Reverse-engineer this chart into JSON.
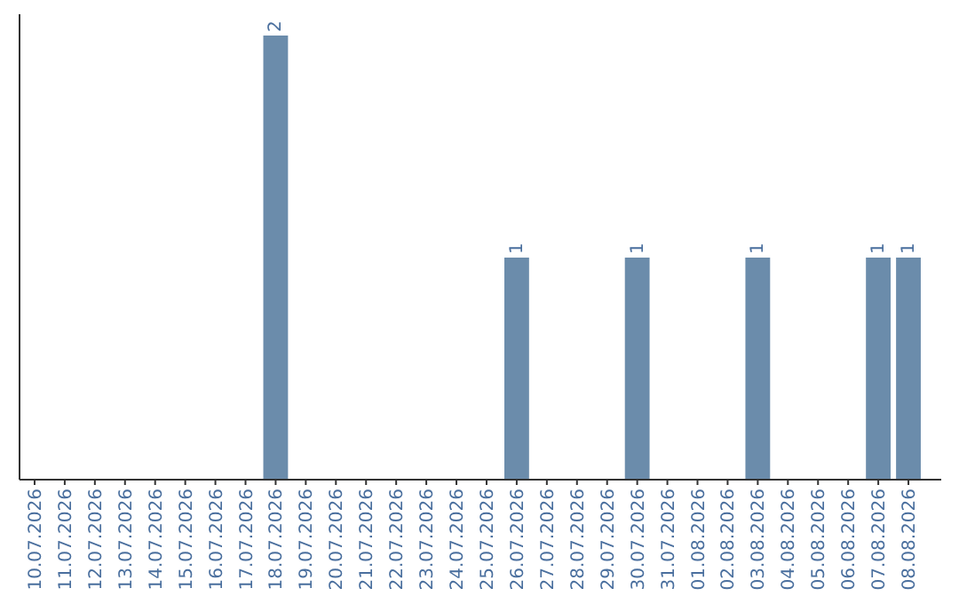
{
  "chart_data": {
    "type": "bar",
    "categories": [
      "10.07.2026",
      "11.07.2026",
      "12.07.2026",
      "13.07.2026",
      "14.07.2026",
      "15.07.2026",
      "16.07.2026",
      "17.07.2026",
      "18.07.2026",
      "19.07.2026",
      "20.07.2026",
      "21.07.2026",
      "22.07.2026",
      "23.07.2026",
      "24.07.2026",
      "25.07.2026",
      "26.07.2026",
      "27.07.2026",
      "28.07.2026",
      "29.07.2026",
      "30.07.2026",
      "31.07.2026",
      "01.08.2026",
      "02.08.2026",
      "03.08.2026",
      "04.08.2026",
      "05.08.2026",
      "06.08.2026",
      "07.08.2026",
      "08.08.2026"
    ],
    "values": [
      0,
      0,
      0,
      0,
      0,
      0,
      0,
      0,
      2,
      0,
      0,
      0,
      0,
      0,
      0,
      0,
      1,
      0,
      0,
      0,
      1,
      0,
      0,
      0,
      1,
      0,
      0,
      0,
      1,
      1
    ],
    "value_labels": [
      null,
      null,
      null,
      null,
      null,
      null,
      null,
      null,
      "2",
      null,
      null,
      null,
      null,
      null,
      null,
      null,
      "1",
      null,
      null,
      null,
      "1",
      null,
      null,
      null,
      "1",
      null,
      null,
      null,
      "1",
      "1"
    ],
    "color": "#6b8cab"
  }
}
